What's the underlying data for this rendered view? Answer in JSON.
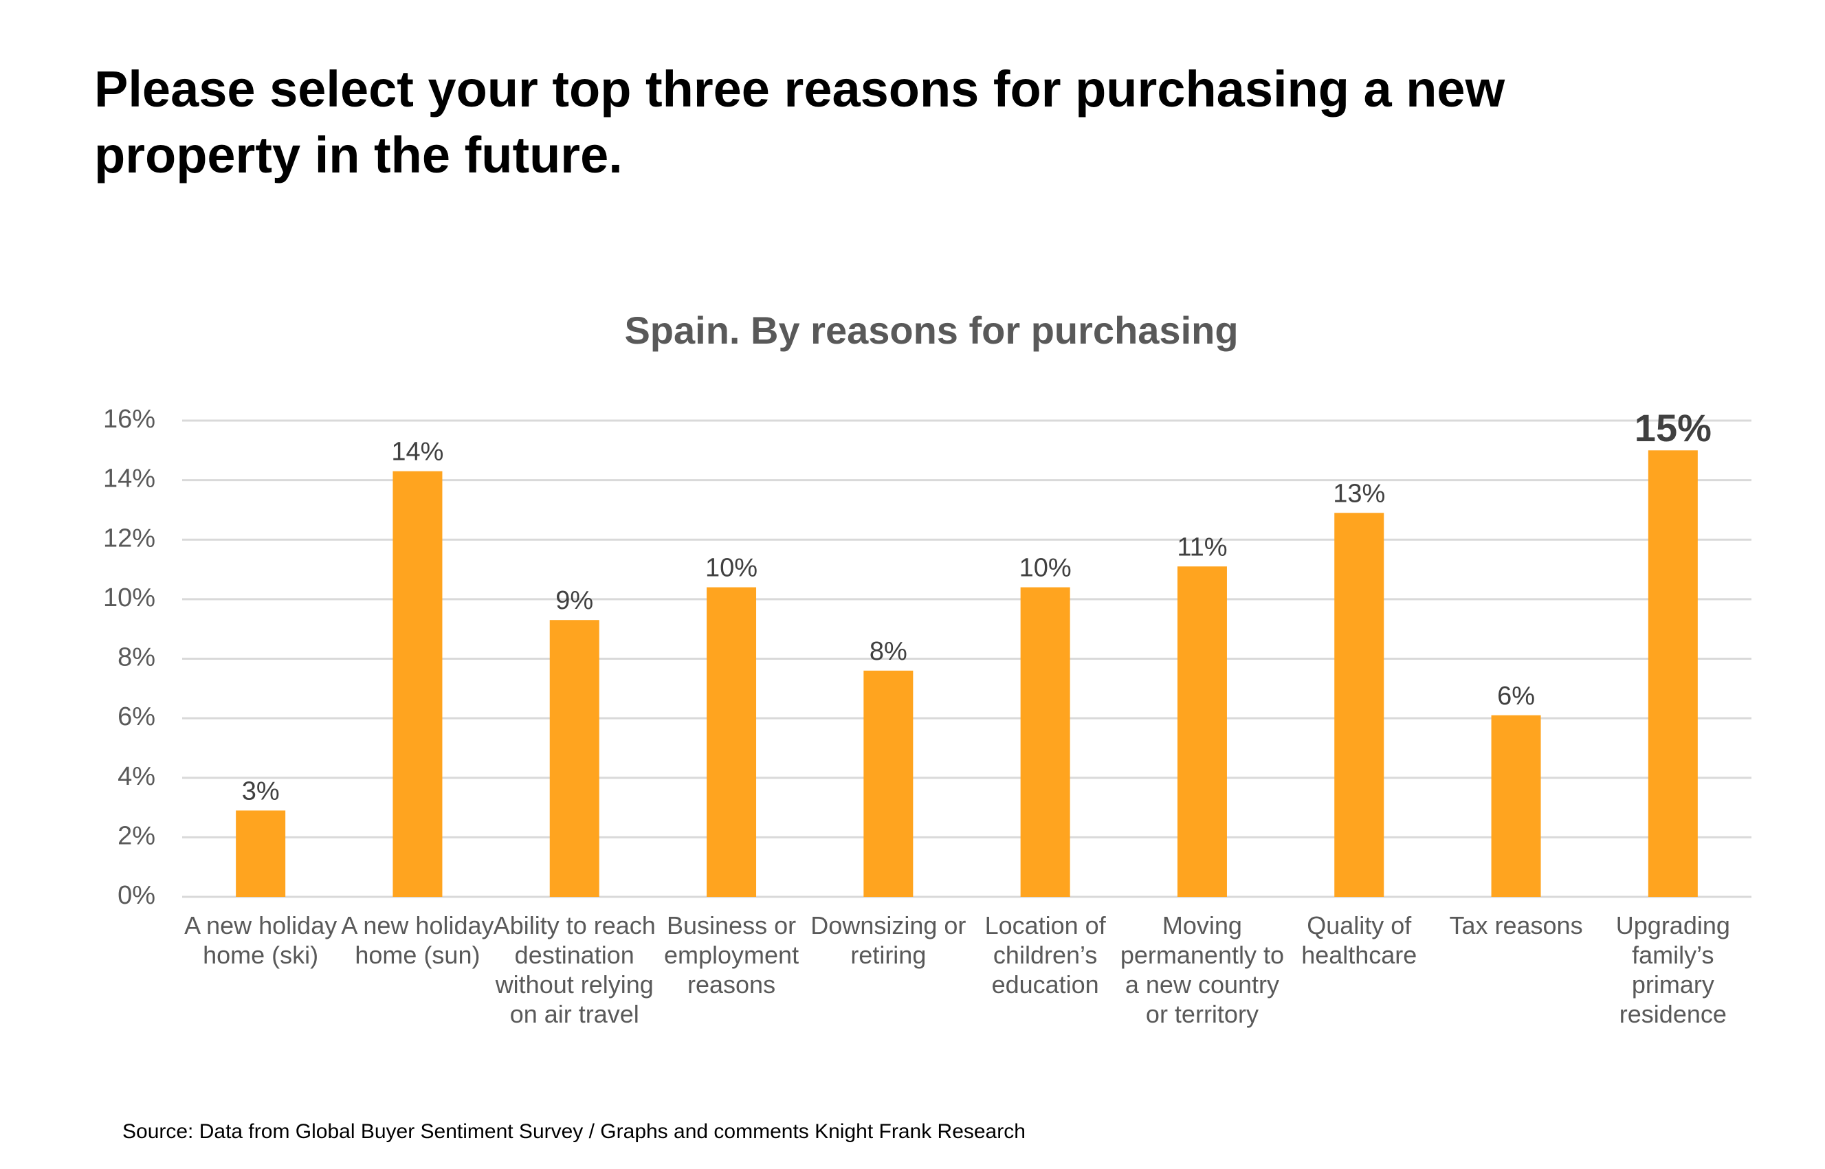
{
  "chart_data": {
    "type": "bar",
    "heading": "Please select your top three reasons for purchasing a new property in the future.",
    "title": "Spain. By reasons for purchasing",
    "categories": [
      "A new holiday home (ski)",
      "A new holiday home (sun)",
      "Ability to reach destination without relying on air travel",
      "Business or employment reasons",
      "Downsizing or retiring",
      "Location of children’s education",
      "Moving permanently to a new country or territory",
      "Quality of healthcare",
      "Tax reasons",
      "Upgrading family’s primary residence"
    ],
    "values": [
      2.9,
      14.3,
      9.3,
      10.4,
      7.6,
      10.4,
      11.1,
      12.9,
      6.1,
      15.0
    ],
    "value_labels": [
      "3%",
      "14%",
      "9%",
      "10%",
      "8%",
      "10%",
      "11%",
      "13%",
      "6%",
      "15%"
    ],
    "color": "#ffa41f",
    "ylim": [
      0,
      16
    ],
    "yticks": [
      {
        "value": 0,
        "label": "0%"
      },
      {
        "value": 2,
        "label": "2%"
      },
      {
        "value": 4,
        "label": "4%"
      },
      {
        "value": 6,
        "label": "6%"
      },
      {
        "value": 8,
        "label": "8%"
      },
      {
        "value": 10,
        "label": "10%"
      },
      {
        "value": 12,
        "label": "12%"
      },
      {
        "value": 14,
        "label": "14%"
      },
      {
        "value": 16,
        "label": "16%"
      }
    ],
    "grid": true,
    "source": "Source: Data from Global Buyer Sentiment Survey / Graphs and comments Knight Frank Research"
  }
}
